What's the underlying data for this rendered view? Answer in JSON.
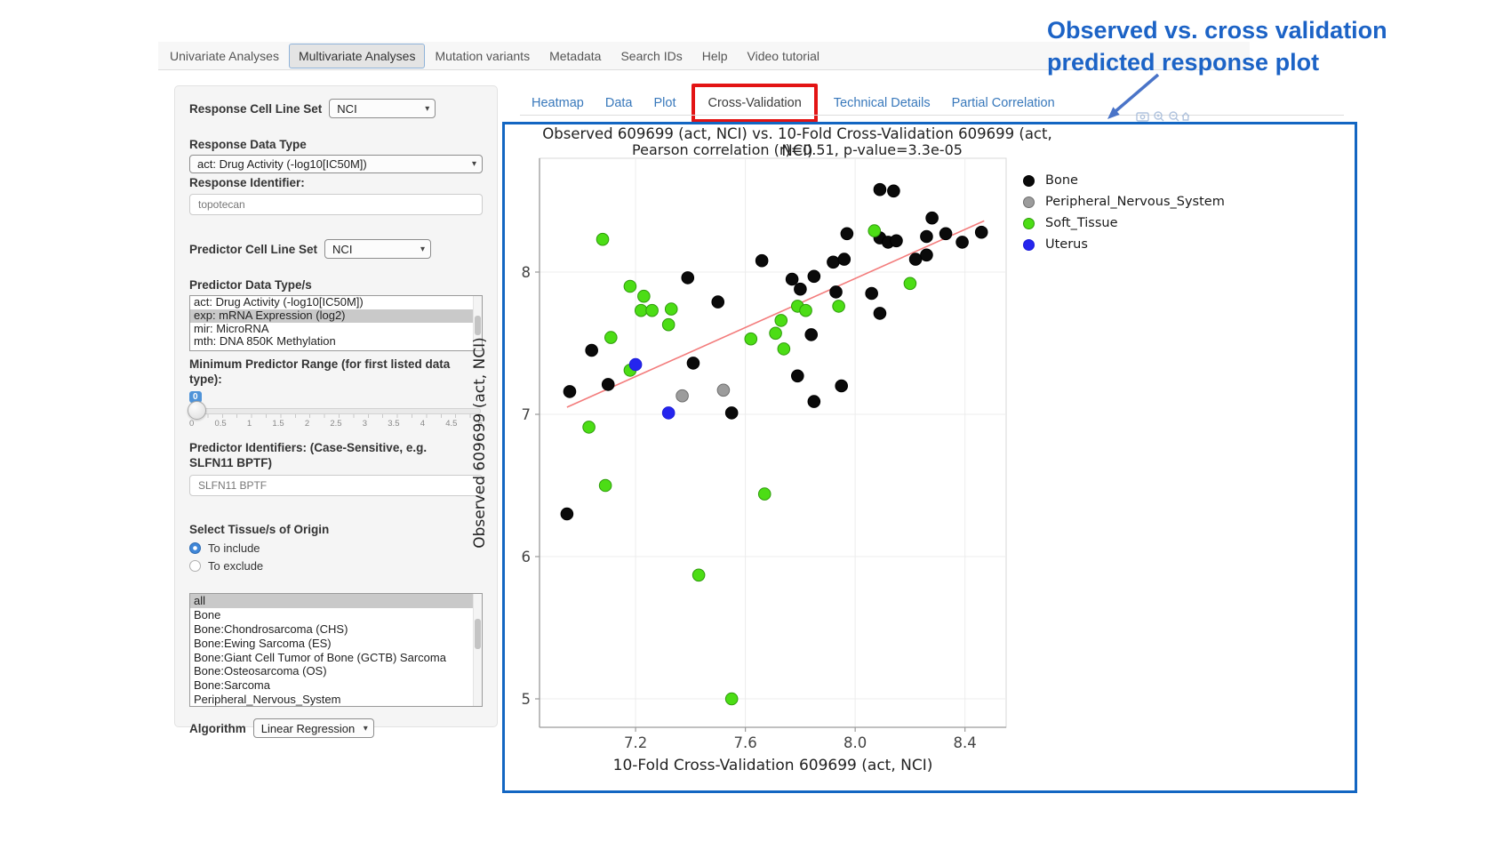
{
  "colors": {
    "annotation_blue": "#1c63c6",
    "highlight_red": "#e31414",
    "plot_border_blue": "#1366c2",
    "link_blue": "#3878bb",
    "regression_red": "#f37c7c"
  },
  "nav": {
    "items": [
      {
        "label": "Univariate Analyses",
        "active": false
      },
      {
        "label": "Multivariate Analyses",
        "active": true
      },
      {
        "label": "Mutation variants",
        "active": false
      },
      {
        "label": "Metadata",
        "active": false
      },
      {
        "label": "Search IDs",
        "active": false
      },
      {
        "label": "Help",
        "active": false
      },
      {
        "label": "Video tutorial",
        "active": false
      }
    ]
  },
  "sidebar": {
    "response_cell_line_set": {
      "label": "Response Cell Line Set",
      "value": "NCI"
    },
    "response_data_type": {
      "label": "Response Data Type",
      "value": "act: Drug Activity (-log10[IC50M])"
    },
    "response_identifier": {
      "label": "Response Identifier:",
      "value": "topotecan"
    },
    "predictor_cell_line_set": {
      "label": "Predictor Cell Line Set",
      "value": "NCI"
    },
    "predictor_data_types": {
      "label": "Predictor Data Type/s",
      "options": [
        "act: Drug Activity (-log10[IC50M])",
        "exp: mRNA Expression (log2)",
        "mir: MicroRNA",
        "mth: DNA 850K Methylation"
      ],
      "selected": "exp: mRNA Expression (log2)"
    },
    "min_predictor_range": {
      "label": "Minimum Predictor Range (for first listed data type):",
      "value": "0",
      "ticks": [
        "0",
        "0.5",
        "1",
        "1.5",
        "2",
        "2.5",
        "3",
        "3.5",
        "4",
        "4.5",
        "5"
      ]
    },
    "predictor_identifiers": {
      "label": "Predictor Identifiers: (Case-Sensitive, e.g. SLFN11 BPTF)",
      "value": "SLFN11 BPTF"
    },
    "tissue_origin": {
      "label": "Select Tissue/s of Origin",
      "radios": [
        {
          "label": "To include",
          "checked": true
        },
        {
          "label": "To exclude",
          "checked": false
        }
      ],
      "options": [
        "all",
        "Bone",
        "Bone:Chondrosarcoma (CHS)",
        "Bone:Ewing Sarcoma (ES)",
        "Bone:Giant Cell Tumor of Bone (GCTB) Sarcoma",
        "Bone:Osteosarcoma (OS)",
        "Bone:Sarcoma",
        "Peripheral_Nervous_System"
      ],
      "selected": "all"
    },
    "algorithm": {
      "label": "Algorithm",
      "value": "Linear Regression"
    }
  },
  "tabs": {
    "items": [
      {
        "label": "Heatmap",
        "active": false,
        "boxed": false
      },
      {
        "label": "Data",
        "active": false,
        "boxed": false
      },
      {
        "label": "Plot",
        "active": false,
        "boxed": false
      },
      {
        "label": "Cross-Validation",
        "active": true,
        "boxed": true
      },
      {
        "label": "Technical Details",
        "active": false,
        "boxed": false
      },
      {
        "label": "Partial Correlation",
        "active": false,
        "boxed": false
      }
    ]
  },
  "annotation": {
    "line1": "Observed vs. cross validation",
    "line2": "predicted response plot"
  },
  "chart_data": {
    "type": "scatter",
    "title": "Observed 609699 (act, NCI) vs. 10-Fold Cross-Validation 609699 (act, NCI)",
    "subtitle": "Pearson correlation (r)=0.51, p-value=3.3e-05",
    "xlabel": "10-Fold Cross-Validation 609699 (act, NCI)",
    "ylabel": "Observed 609699 (act, NCI)",
    "xlim": [
      6.85,
      8.55
    ],
    "ylim": [
      4.8,
      8.8
    ],
    "xticks": [
      "7.2",
      "7.6",
      "8.0",
      "8.4"
    ],
    "yticks": [
      "5",
      "6",
      "7",
      "8"
    ],
    "grid": true,
    "legend_position": "right-outside",
    "series": [
      {
        "name": "Bone",
        "color": "#0a0a0a",
        "edge": "#000000",
        "points": [
          [
            6.95,
            6.3
          ],
          [
            6.96,
            7.16
          ],
          [
            7.04,
            7.45
          ],
          [
            7.1,
            7.21
          ],
          [
            7.39,
            7.96
          ],
          [
            7.41,
            7.36
          ],
          [
            7.5,
            7.79
          ],
          [
            7.55,
            7.01
          ],
          [
            7.66,
            8.08
          ],
          [
            7.77,
            7.95
          ],
          [
            7.8,
            7.88
          ],
          [
            7.85,
            7.97
          ],
          [
            7.84,
            7.56
          ],
          [
            7.79,
            7.27
          ],
          [
            7.85,
            7.09
          ],
          [
            7.93,
            7.86
          ],
          [
            7.95,
            7.2
          ],
          [
            7.92,
            8.07
          ],
          [
            7.96,
            8.09
          ],
          [
            7.97,
            8.27
          ],
          [
            8.06,
            7.85
          ],
          [
            8.09,
            7.71
          ],
          [
            8.09,
            8.58
          ],
          [
            8.14,
            8.57
          ],
          [
            8.09,
            8.24
          ],
          [
            8.12,
            8.21
          ],
          [
            8.15,
            8.22
          ],
          [
            8.22,
            8.09
          ],
          [
            8.26,
            8.12
          ],
          [
            8.26,
            8.25
          ],
          [
            8.28,
            8.38
          ],
          [
            8.33,
            8.27
          ],
          [
            8.39,
            8.21
          ],
          [
            8.46,
            8.28
          ]
        ]
      },
      {
        "name": "Peripheral_Nervous_System",
        "color": "#9c9c9c",
        "edge": "#6e6e6e",
        "points": [
          [
            7.37,
            7.13
          ],
          [
            7.52,
            7.17
          ]
        ]
      },
      {
        "name": "Soft_Tissue",
        "color": "#4cdd15",
        "edge": "#2e9b0b",
        "points": [
          [
            7.08,
            8.23
          ],
          [
            7.18,
            7.9
          ],
          [
            7.23,
            7.83
          ],
          [
            7.22,
            7.73
          ],
          [
            7.26,
            7.73
          ],
          [
            7.33,
            7.74
          ],
          [
            7.32,
            7.63
          ],
          [
            7.11,
            7.54
          ],
          [
            7.18,
            7.31
          ],
          [
            7.62,
            7.53
          ],
          [
            7.71,
            7.57
          ],
          [
            7.73,
            7.66
          ],
          [
            7.79,
            7.76
          ],
          [
            7.82,
            7.73
          ],
          [
            7.74,
            7.46
          ],
          [
            7.94,
            7.76
          ],
          [
            8.07,
            8.29
          ],
          [
            8.2,
            7.92
          ],
          [
            7.03,
            6.91
          ],
          [
            7.09,
            6.5
          ],
          [
            7.67,
            6.44
          ],
          [
            7.43,
            5.87
          ],
          [
            7.55,
            5.0
          ]
        ]
      },
      {
        "name": "Uterus",
        "color": "#2525ee",
        "edge": "#1b1bd8",
        "points": [
          [
            7.2,
            7.35
          ],
          [
            7.32,
            7.01
          ]
        ]
      }
    ],
    "regression_line": {
      "color": "#f37c7c",
      "x1": 6.95,
      "y1": 7.05,
      "x2": 8.47,
      "y2": 8.36
    }
  }
}
